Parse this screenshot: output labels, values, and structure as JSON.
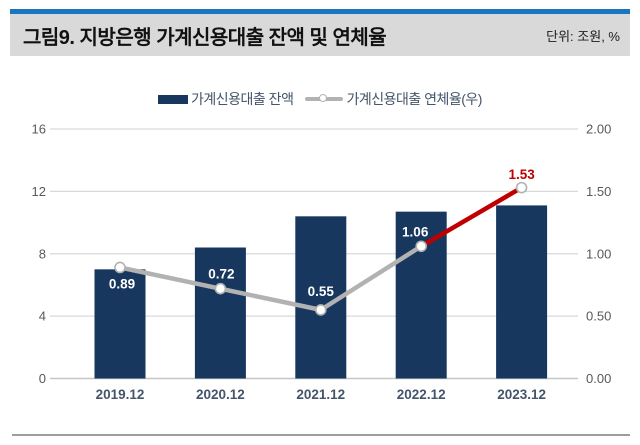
{
  "header": {
    "title": "그림9. 지방은행 가계신용대출 잔액 및 연체율",
    "unit_label": "단위: 조원, %"
  },
  "legend": [
    {
      "label": "가계신용대출 잔액",
      "type": "bar"
    },
    {
      "label": "가계신용대출 연체율(우)",
      "type": "line"
    }
  ],
  "colors": {
    "bar": "#17375e",
    "line": "#b2b2b2",
    "line_highlight": "#c00000",
    "marker_fill": "#ffffff",
    "marker_stroke": "#b2b2b2",
    "grid": "#d9d9d9",
    "baseline": "#c6c6c6",
    "axis_text": "#595959",
    "category_text": "#44546a",
    "value_label_on_bar": "#ffffff",
    "value_label_highlight": "#c00000",
    "header_bg": "#d9d9d9",
    "header_accent": "#1b76c0"
  },
  "chart_data": {
    "type": "bar+line combo",
    "title": "그림9. 지방은행 가계신용대출 잔액 및 연체율",
    "unit": "단위: 조원, %",
    "categories": [
      "2019.12",
      "2020.12",
      "2021.12",
      "2022.12",
      "2023.12"
    ],
    "series": [
      {
        "name": "가계신용대출 잔액",
        "type": "bar",
        "axis": "left",
        "values": [
          7.0,
          8.4,
          10.4,
          10.7,
          11.1
        ]
      },
      {
        "name": "가계신용대출 연체율(우)",
        "type": "line",
        "axis": "right",
        "values": [
          0.89,
          0.72,
          0.55,
          1.06,
          1.53
        ],
        "point_labels": [
          "0.89",
          "0.72",
          "0.55",
          "1.06",
          "1.53"
        ],
        "label_positions": [
          "below",
          "above",
          "above",
          "above",
          "above"
        ],
        "highlight_last_segment": true
      }
    ],
    "left_axis": {
      "min": 0,
      "max": 16,
      "ticks": [
        "0",
        "4",
        "8",
        "12",
        "16"
      ]
    },
    "right_axis": {
      "min": 0,
      "max": 2,
      "ticks": [
        "0.00",
        "0.50",
        "1.00",
        "1.50",
        "2.00"
      ]
    },
    "grid": true,
    "legend_position": "top"
  }
}
